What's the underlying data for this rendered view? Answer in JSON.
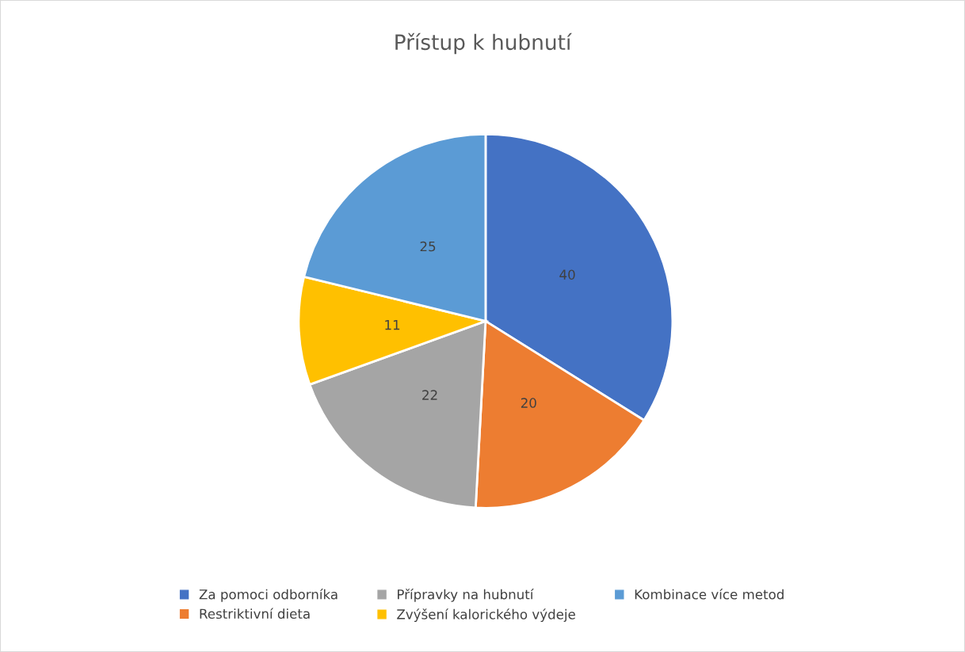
{
  "chart_data": {
    "type": "pie",
    "title": "Přístup k hubnutí",
    "categories": [
      "Za pomoci odborníka",
      "Restriktivní dieta",
      "Přípravky na hubnutí",
      "Zvýšení kalorického výdeje",
      "Kombinace více metod"
    ],
    "values": [
      40,
      20,
      22,
      11,
      25
    ],
    "colors": [
      "#4472c4",
      "#ed7d31",
      "#a5a5a5",
      "#ffc000",
      "#5b9bd5"
    ],
    "data_labels": true,
    "legend": "bottom"
  }
}
